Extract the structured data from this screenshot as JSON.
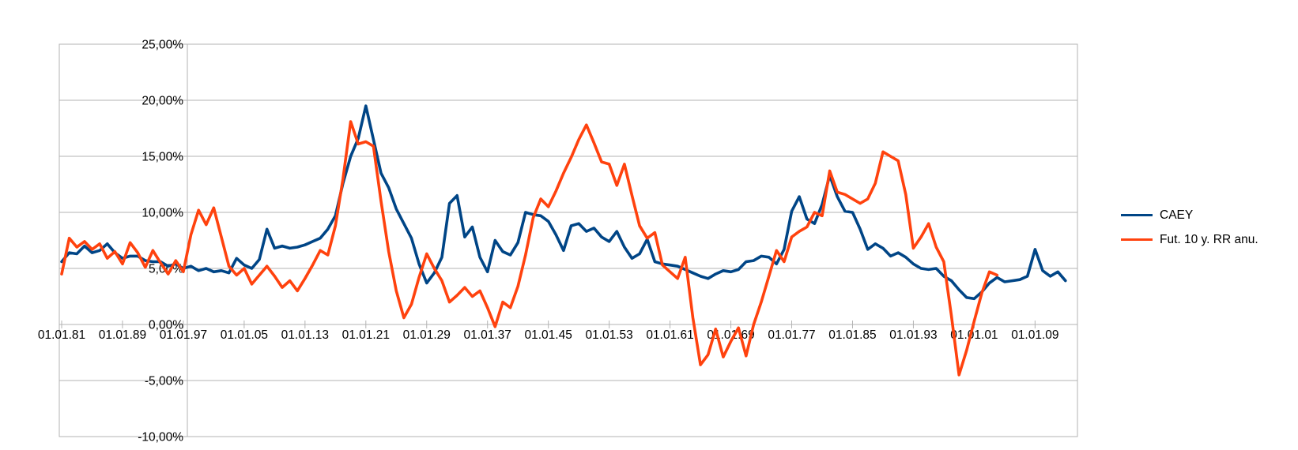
{
  "chart_data": {
    "type": "line",
    "title": "",
    "xlabel": "",
    "ylabel": "",
    "grid": true,
    "background": "#ffffff",
    "grid_color": "#b3b3b3",
    "text_color": "#000000",
    "y_axis": {
      "min": -10,
      "max": 25,
      "step": 5,
      "tick_labels": [
        "25,00%",
        "20,00%",
        "15,00%",
        "10,00%",
        "5,00%",
        "0,00%",
        "-5,00%",
        "-10,00%"
      ]
    },
    "x_axis": {
      "tick_labels": [
        "01.01.81",
        "01.01.89",
        "01.01.97",
        "01.01.05",
        "01.01.13",
        "01.01.21",
        "01.01.29",
        "01.01.37",
        "01.01.45",
        "01.01.53",
        "01.01.61",
        "01.01.69",
        "01.01.77",
        "01.01.85",
        "01.01.93",
        "01.01.01",
        "01.01.09"
      ],
      "first_year": 1881,
      "label_step_years": 8
    },
    "legend": {
      "position": "right",
      "entries": [
        {
          "label": "CAEY",
          "color": "#004586"
        },
        {
          "label": "Fut. 10 y. RR anu.",
          "color": "#FF420E"
        }
      ]
    },
    "series": [
      {
        "name": "CAEY",
        "color": "#004586",
        "start_year": 1881,
        "unit": "%",
        "values": [
          5.6,
          6.4,
          6.3,
          7.0,
          6.4,
          6.6,
          7.2,
          6.4,
          5.9,
          6.1,
          6.1,
          5.7,
          5.6,
          5.6,
          5.2,
          5.4,
          5.0,
          5.2,
          4.8,
          5.0,
          4.7,
          4.8,
          4.6,
          5.9,
          5.3,
          5.0,
          5.8,
          8.5,
          6.8,
          7.0,
          6.8,
          6.9,
          7.1,
          7.4,
          7.7,
          8.5,
          9.7,
          12.6,
          15.0,
          16.6,
          19.5,
          16.5,
          13.5,
          12.2,
          10.3,
          9.0,
          7.7,
          5.4,
          3.7,
          4.6,
          6.0,
          10.8,
          11.5,
          7.8,
          8.7,
          6.0,
          4.7,
          7.5,
          6.5,
          6.2,
          7.3,
          10.0,
          9.8,
          9.7,
          9.2,
          8.0,
          6.6,
          8.8,
          9.0,
          8.3,
          8.6,
          7.8,
          7.4,
          8.3,
          6.9,
          5.9,
          6.3,
          7.6,
          5.6,
          5.4,
          5.3,
          5.2,
          4.9,
          4.6,
          4.3,
          4.1,
          4.5,
          4.8,
          4.7,
          4.9,
          5.6,
          5.7,
          6.1,
          6.0,
          5.4,
          6.7,
          10.1,
          11.4,
          9.4,
          9.0,
          10.7,
          13.3,
          11.4,
          10.1,
          10.0,
          8.5,
          6.7,
          7.2,
          6.8,
          6.1,
          6.4,
          6.0,
          5.4,
          5.0,
          4.9,
          5.0,
          4.3,
          3.9,
          3.1,
          2.4,
          2.3,
          2.9,
          3.7,
          4.2,
          3.8,
          3.9,
          4.0,
          4.3,
          6.7,
          4.8,
          4.3,
          4.7,
          3.9
        ]
      },
      {
        "name": "Fut. 10 y. RR anu.",
        "color": "#FF420E",
        "start_year": 1881,
        "unit": "%",
        "values": [
          4.5,
          7.7,
          6.9,
          7.4,
          6.7,
          7.2,
          5.9,
          6.5,
          5.4,
          7.3,
          6.4,
          5.1,
          6.6,
          5.5,
          4.5,
          5.7,
          4.7,
          8.0,
          10.2,
          8.9,
          10.4,
          7.8,
          5.2,
          4.4,
          5.0,
          3.6,
          4.4,
          5.2,
          4.3,
          3.3,
          3.9,
          3.0,
          4.1,
          5.3,
          6.6,
          6.2,
          8.8,
          13.0,
          18.1,
          16.1,
          16.3,
          15.9,
          11.0,
          6.5,
          3.0,
          0.6,
          1.8,
          4.2,
          6.3,
          5.0,
          3.9,
          2.0,
          2.6,
          3.3,
          2.5,
          3.0,
          1.5,
          -0.2,
          2.0,
          1.5,
          3.4,
          6.2,
          9.5,
          11.2,
          10.5,
          11.9,
          13.5,
          14.9,
          16.5,
          17.8,
          16.2,
          14.5,
          14.3,
          12.4,
          14.3,
          11.5,
          8.8,
          7.7,
          8.2,
          5.3,
          4.7,
          4.1,
          6.0,
          0.6,
          -3.6,
          -2.7,
          -0.4,
          -2.9,
          -1.5,
          -0.3,
          -2.8,
          0.0,
          2.0,
          4.3,
          6.6,
          5.6,
          7.8,
          8.3,
          8.7,
          10.0,
          9.7,
          13.7,
          11.8,
          11.6,
          11.2,
          10.8,
          11.2,
          12.6,
          15.4,
          15.0,
          14.6,
          11.6,
          6.8,
          7.8,
          9.0,
          6.9,
          5.6,
          0.8,
          -4.5,
          -2.3,
          0.3,
          2.8,
          4.7,
          4.4
        ]
      }
    ]
  }
}
